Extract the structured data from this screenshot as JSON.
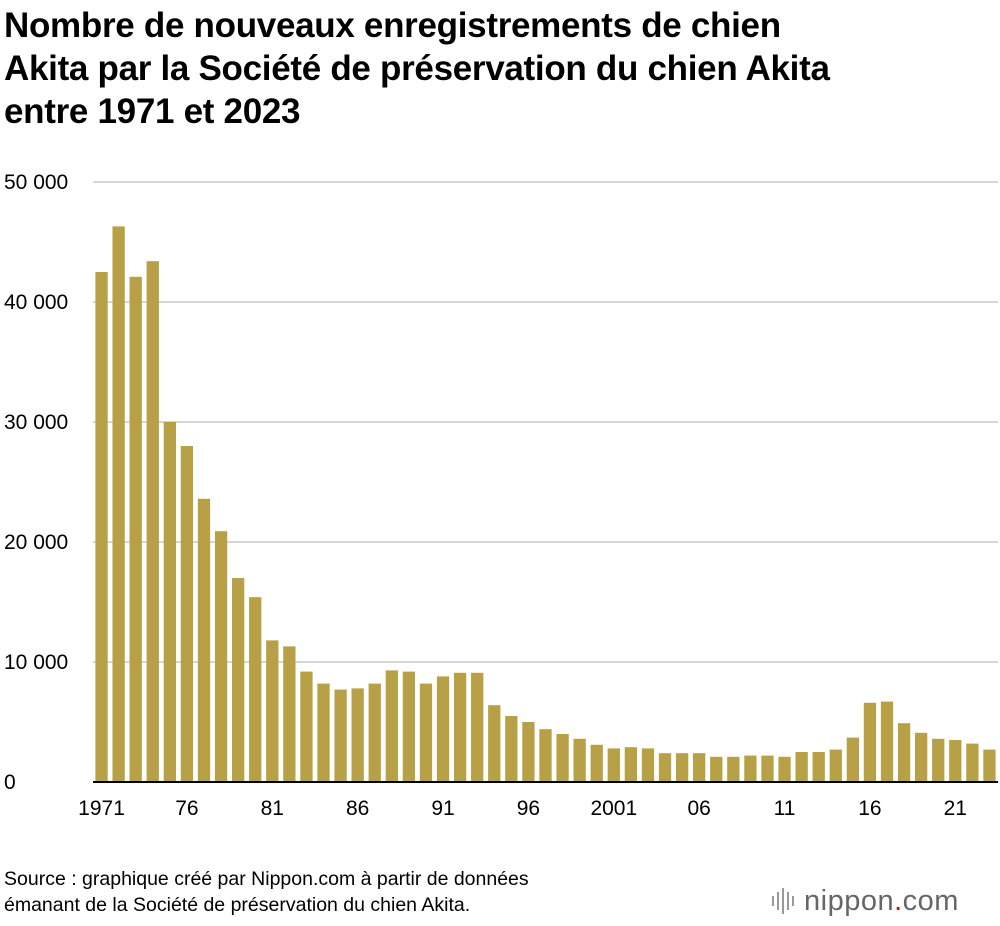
{
  "title_lines": [
    "Nombre de nouveaux enregistrements de chien",
    "Akita par la Société de préservation du chien Akita",
    "entre 1971 et 2023"
  ],
  "source_lines": [
    "Source : graphique créé par Nippon.com à partir de données",
    "émanant de la Société de préservation du chien Akita."
  ],
  "logo": {
    "brand": "nippon",
    "dot": ".",
    "tld": "com"
  },
  "colors": {
    "bar": "#b8a046",
    "grid": "#c8c8c8",
    "axis": "#000000",
    "logo_dot": "#d0021b"
  },
  "chart_data": {
    "type": "bar",
    "title": "Nombre de nouveaux enregistrements de chien Akita par la Société de préservation du chien Akita entre 1971 et 2023",
    "xlabel": "",
    "ylabel": "",
    "ylim": [
      0,
      50000
    ],
    "grid": true,
    "y_ticks": [
      0,
      10000,
      20000,
      30000,
      40000,
      50000
    ],
    "y_tick_labels": [
      "0",
      "10 000",
      "20 000",
      "30 000",
      "40 000",
      "50 000"
    ],
    "x_tick_labels": [
      {
        "year": 1971,
        "label": "1971"
      },
      {
        "year": 1976,
        "label": "76"
      },
      {
        "year": 1981,
        "label": "81"
      },
      {
        "year": 1986,
        "label": "86"
      },
      {
        "year": 1991,
        "label": "91"
      },
      {
        "year": 1996,
        "label": "96"
      },
      {
        "year": 2001,
        "label": "2001"
      },
      {
        "year": 2006,
        "label": "06"
      },
      {
        "year": 2011,
        "label": "11"
      },
      {
        "year": 2016,
        "label": "16"
      },
      {
        "year": 2021,
        "label": "21"
      }
    ],
    "categories": [
      1971,
      1972,
      1973,
      1974,
      1975,
      1976,
      1977,
      1978,
      1979,
      1980,
      1981,
      1982,
      1983,
      1984,
      1985,
      1986,
      1987,
      1988,
      1989,
      1990,
      1991,
      1992,
      1993,
      1994,
      1995,
      1996,
      1997,
      1998,
      1999,
      2000,
      2001,
      2002,
      2003,
      2004,
      2005,
      2006,
      2007,
      2008,
      2009,
      2010,
      2011,
      2012,
      2013,
      2014,
      2015,
      2016,
      2017,
      2018,
      2019,
      2020,
      2021,
      2022,
      2023
    ],
    "values": [
      42500,
      46300,
      42100,
      43400,
      30000,
      28000,
      23600,
      20900,
      17000,
      15400,
      11800,
      11300,
      9200,
      8200,
      7700,
      7800,
      8200,
      9300,
      9200,
      8200,
      8800,
      9100,
      9100,
      6400,
      5500,
      5000,
      4400,
      4000,
      3600,
      3100,
      2800,
      2900,
      2800,
      2400,
      2400,
      2400,
      2100,
      2100,
      2200,
      2200,
      2100,
      2500,
      2500,
      2700,
      3700,
      6600,
      6700,
      4900,
      4100,
      3600,
      3500,
      3200,
      2700
    ]
  }
}
